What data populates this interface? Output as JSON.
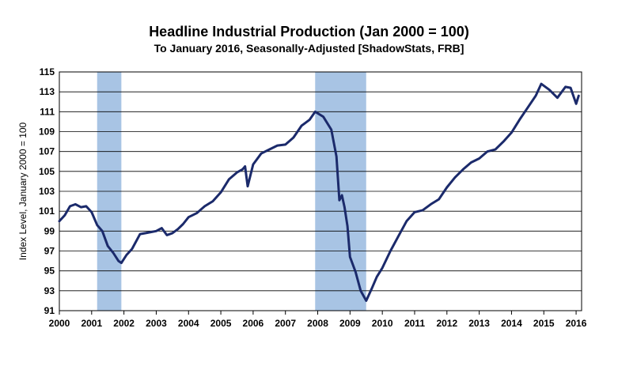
{
  "chart_data": {
    "type": "line",
    "title": "Headline Industrial Production (Jan 2000 = 100)",
    "subtitle": "To January 2016, Seasonally-Adjusted [ShadowStats, FRB]",
    "xlabel": "",
    "ylabel": "Index Level, January 2000 = 100",
    "xlim": [
      2000,
      2016.17
    ],
    "ylim": [
      91,
      115
    ],
    "x_ticks": [
      "2000",
      "2001",
      "2002",
      "2003",
      "2004",
      "2005",
      "2006",
      "2007",
      "2008",
      "2009",
      "2010",
      "2011",
      "2012",
      "2013",
      "2014",
      "2015",
      "2016"
    ],
    "y_ticks": [
      "91",
      "93",
      "95",
      "97",
      "99",
      "101",
      "103",
      "105",
      "107",
      "109",
      "111",
      "113",
      "115"
    ],
    "grid": true,
    "legend": "none",
    "line_color": "#1b2a6b",
    "recession_color": "#a8c4e4",
    "recessions": [
      [
        2001.17,
        2001.92
      ],
      [
        2007.92,
        2009.5
      ]
    ],
    "series": [
      {
        "x": [
          2000.0,
          2000.17,
          2000.33,
          2000.5,
          2000.67,
          2000.83,
          2001.0,
          2001.17,
          2001.33,
          2001.5,
          2001.67,
          2001.83,
          2001.92,
          2002.08,
          2002.25,
          2002.5,
          2002.67,
          2002.83,
          2003.0,
          2003.17,
          2003.33,
          2003.5,
          2003.67,
          2003.83,
          2004.0,
          2004.25,
          2004.5,
          2004.75,
          2005.0,
          2005.25,
          2005.5,
          2005.67,
          2005.75,
          2005.83,
          2006.0,
          2006.25,
          2006.5,
          2006.75,
          2007.0,
          2007.25,
          2007.5,
          2007.75,
          2007.92,
          2008.17,
          2008.42,
          2008.58,
          2008.67,
          2008.75,
          2008.83,
          2008.92,
          2009.0,
          2009.17,
          2009.33,
          2009.5,
          2009.67,
          2009.83,
          2010.0,
          2010.25,
          2010.5,
          2010.75,
          2011.0,
          2011.25,
          2011.5,
          2011.75,
          2012.0,
          2012.25,
          2012.5,
          2012.75,
          2013.0,
          2013.25,
          2013.5,
          2013.75,
          2014.0,
          2014.25,
          2014.5,
          2014.75,
          2014.92,
          2015.17,
          2015.42,
          2015.67,
          2015.83,
          2016.0,
          2016.08
        ],
        "y": [
          100.0,
          100.6,
          101.5,
          101.7,
          101.4,
          101.5,
          100.9,
          99.6,
          99.0,
          97.5,
          96.8,
          96.0,
          95.8,
          96.6,
          97.2,
          98.7,
          98.8,
          98.9,
          99.0,
          99.3,
          98.6,
          98.8,
          99.2,
          99.7,
          100.4,
          100.8,
          101.5,
          102.0,
          102.9,
          104.2,
          104.9,
          105.2,
          105.5,
          103.5,
          105.7,
          106.8,
          107.2,
          107.6,
          107.7,
          108.4,
          109.6,
          110.2,
          111.0,
          110.5,
          109.2,
          106.5,
          102.1,
          102.6,
          101.4,
          99.5,
          96.4,
          94.9,
          93.0,
          92.0,
          93.2,
          94.4,
          95.3,
          97.0,
          98.5,
          100.0,
          100.9,
          101.1,
          101.7,
          102.2,
          103.4,
          104.4,
          105.2,
          105.9,
          106.3,
          107.0,
          107.2,
          108.0,
          108.9,
          110.2,
          111.4,
          112.6,
          113.8,
          113.2,
          112.4,
          113.5,
          113.4,
          111.8,
          112.6
        ]
      }
    ]
  }
}
